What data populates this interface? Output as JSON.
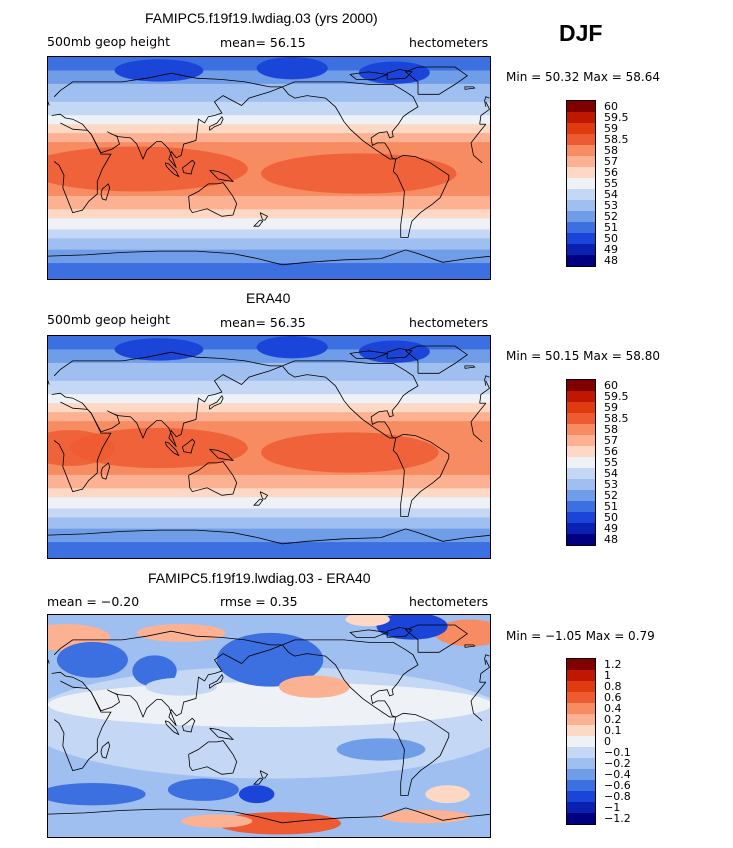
{
  "season": "DJF",
  "chart_data": [
    {
      "type": "heatmap",
      "title": "FAMIPC5.f19f19.lwdiag.03 (yrs 2000)",
      "left_label": "500mb geop height",
      "center_label": "mean=  56.15",
      "units": "hectometers",
      "minmax": "Min =  50.32  Max =  58.64",
      "colorbar": {
        "labels": [
          "60",
          "59.5",
          "59",
          "58.5",
          "58",
          "57",
          "56",
          "55",
          "54",
          "53",
          "52",
          "51",
          "50",
          "49",
          "48"
        ],
        "colors": [
          "#800000",
          "#c01800",
          "#e03a10",
          "#ee5a32",
          "#f78b62",
          "#fbb192",
          "#fdd8c4",
          "#eef2f6",
          "#c4d7f4",
          "#9fbff0",
          "#709de8",
          "#3c6fe0",
          "#1a45d8",
          "#0a20b0",
          "#000080"
        ]
      },
      "field": "model"
    },
    {
      "type": "heatmap",
      "title": "ERA40",
      "left_label": "500mb geop height",
      "center_label": "mean=  56.35",
      "units": "hectometers",
      "minmax": "Min =  50.15  Max =  58.80",
      "colorbar": {
        "labels": [
          "60",
          "59.5",
          "59",
          "58.5",
          "58",
          "57",
          "56",
          "55",
          "54",
          "53",
          "52",
          "51",
          "50",
          "49",
          "48"
        ],
        "colors": [
          "#800000",
          "#c01800",
          "#e03a10",
          "#ee5a32",
          "#f78b62",
          "#fbb192",
          "#fdd8c4",
          "#eef2f6",
          "#c4d7f4",
          "#9fbff0",
          "#709de8",
          "#3c6fe0",
          "#1a45d8",
          "#0a20b0",
          "#000080"
        ]
      },
      "field": "obs"
    },
    {
      "type": "heatmap",
      "title": "FAMIPC5.f19f19.lwdiag.03 - ERA40",
      "left_label": "mean =  −0.20",
      "center_label": "rmse =   0.35",
      "units": "hectometers",
      "minmax": "Min =  −1.05  Max =   0.79",
      "colorbar": {
        "labels": [
          "1.2",
          "1",
          "0.8",
          "0.6",
          "0.4",
          "0.2",
          "0.1",
          "0",
          "−0.1",
          "−0.2",
          "−0.4",
          "−0.6",
          "−0.8",
          "−1",
          "−1.2"
        ],
        "colors": [
          "#800000",
          "#c01800",
          "#e03a10",
          "#ee5a32",
          "#f78b62",
          "#fbb192",
          "#fdd8c4",
          "#eef2f6",
          "#c4d7f4",
          "#9fbff0",
          "#709de8",
          "#3c6fe0",
          "#1a45d8",
          "#0a20b0",
          "#000080"
        ]
      },
      "field": "diff"
    }
  ]
}
